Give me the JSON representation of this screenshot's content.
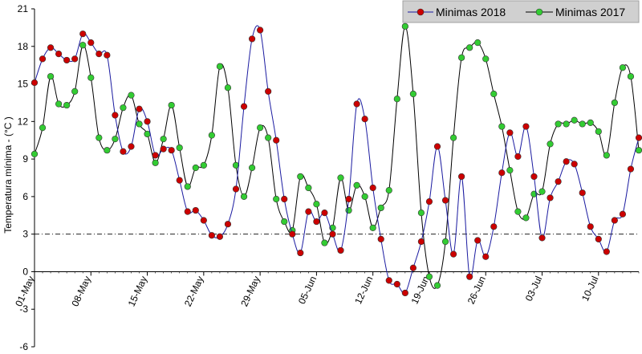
{
  "chart_data": {
    "type": "line",
    "ylabel": "Temperatura mínima - (°C )",
    "ylim": [
      -6,
      21
    ],
    "yticks": [
      -6,
      -3,
      0,
      3,
      6,
      9,
      12,
      15,
      18,
      21
    ],
    "x_start": "01-May",
    "x_end": "17-Jul",
    "xtick_labels": [
      "01-May",
      "08-May",
      "15-May",
      "22-May",
      "29-May",
      "05-Jun",
      "12-Jun",
      "19-Jun",
      "26-Jun",
      "03-Jul",
      "10-Jul"
    ],
    "reference_line": 3,
    "legend_position": "top-right",
    "series": [
      {
        "name": "Minimas 2018",
        "marker_color": "#cc0000",
        "line_color": "#1a1aa0",
        "values": [
          15.1,
          17.0,
          17.9,
          17.4,
          16.9,
          17.0,
          19.0,
          18.3,
          17.4,
          17.3,
          12.5,
          9.6,
          10.0,
          13.0,
          12.0,
          9.3,
          9.8,
          9.7,
          7.3,
          4.8,
          4.9,
          4.1,
          2.9,
          2.8,
          3.8,
          6.6,
          13.2,
          18.6,
          19.3,
          14.4,
          10.5,
          5.8,
          3.0,
          1.5,
          4.8,
          4.0,
          4.7,
          3.0,
          1.7,
          5.8,
          13.4,
          12.2,
          6.7,
          2.6,
          -0.7,
          -1.0,
          -1.7,
          0.3,
          2.4,
          5.6,
          10.0,
          5.7,
          1.4,
          7.6,
          -0.4,
          2.5,
          1.2,
          3.6,
          7.9,
          11.1,
          9.2,
          11.6,
          7.6,
          2.7,
          5.9,
          7.2,
          8.8,
          8.6,
          6.3,
          3.6,
          2.6,
          1.6,
          4.1,
          4.6,
          8.2,
          10.7
        ]
      },
      {
        "name": "Minimas 2017",
        "marker_color": "#33cc33",
        "line_color": "#000000",
        "values": [
          9.4,
          11.5,
          15.6,
          13.4,
          13.3,
          14.4,
          18.1,
          15.5,
          10.7,
          9.7,
          10.6,
          13.1,
          14.1,
          11.8,
          11.0,
          8.7,
          10.6,
          13.3,
          9.9,
          6.8,
          8.3,
          8.5,
          10.9,
          16.4,
          14.7,
          8.5,
          6.0,
          8.3,
          11.5,
          10.7,
          5.8,
          4.0,
          3.3,
          7.6,
          6.7,
          5.4,
          2.3,
          3.5,
          7.5,
          4.9,
          6.9,
          6.0,
          3.5,
          5.1,
          6.5,
          13.8,
          19.6,
          14.2,
          4.7,
          -0.4,
          -1.1,
          2.4,
          10.7,
          17.1,
          17.9,
          18.3,
          17.0,
          14.2,
          11.6,
          8.1,
          4.8,
          4.3,
          6.2,
          6.4,
          10.2,
          11.8,
          11.8,
          12.1,
          11.8,
          11.9,
          11.2,
          9.3,
          13.5,
          16.3,
          15.6,
          9.7
        ]
      }
    ]
  }
}
